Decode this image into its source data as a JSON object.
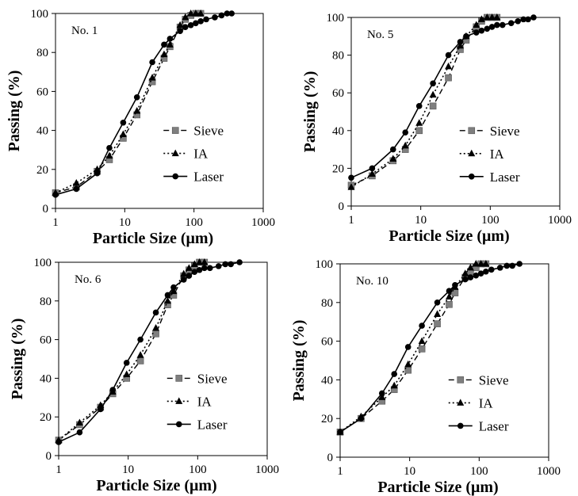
{
  "chart_data": [
    {
      "type": "line",
      "title": "No. 1",
      "xlabel": "Particle Size (μm)",
      "ylabel": "Passing (%)",
      "x_scale": "log",
      "xlim": [
        1,
        1000
      ],
      "ylim": [
        0,
        100
      ],
      "x_ticks": [
        "1",
        "10",
        "100",
        "1000"
      ],
      "y_ticks": [
        "0",
        "20",
        "40",
        "60",
        "80",
        "100"
      ],
      "legend_position": "center-right",
      "series": [
        {
          "name": "Sieve",
          "line": "dashed",
          "marker": "square",
          "x": [
            1,
            2,
            4,
            6,
            9.5,
            15,
            25,
            37,
            45,
            63,
            75,
            90,
            106,
            125
          ],
          "y": [
            8,
            11,
            19,
            25,
            36,
            48,
            65,
            77,
            83,
            93,
            97,
            99,
            100,
            100
          ]
        },
        {
          "name": "IA",
          "line": "dotted",
          "marker": "triangle",
          "x": [
            1,
            2,
            4,
            6,
            9.5,
            15,
            25,
            37,
            45,
            63,
            75,
            90,
            106,
            125
          ],
          "y": [
            8,
            13,
            20,
            27,
            38,
            50,
            67,
            79,
            84,
            94,
            98,
            100,
            100,
            100
          ]
        },
        {
          "name": "Laser",
          "line": "solid",
          "marker": "circle",
          "x": [
            1,
            2,
            4,
            6,
            9.5,
            15,
            25,
            37,
            45,
            63,
            75,
            90,
            106,
            125,
            150,
            200,
            250,
            300,
            350
          ],
          "y": [
            7,
            10,
            18,
            31,
            44,
            57,
            75,
            84,
            87,
            91,
            93,
            94,
            95,
            96,
            97,
            98,
            99,
            100,
            100
          ]
        }
      ]
    },
    {
      "type": "line",
      "title": "No. 5",
      "xlabel": "Particle Size (μm)",
      "ylabel": "Passing (%)",
      "x_scale": "log",
      "xlim": [
        1,
        1000
      ],
      "ylim": [
        0,
        100
      ],
      "x_ticks": [
        "1",
        "10",
        "100",
        "1000"
      ],
      "y_ticks": [
        "0",
        "20",
        "40",
        "60",
        "80",
        "100"
      ],
      "legend_position": "center-right",
      "series": [
        {
          "name": "Sieve",
          "line": "dashed",
          "marker": "square",
          "x": [
            1,
            2,
            4,
            6,
            9.5,
            15,
            25,
            37,
            45,
            63,
            75,
            90,
            106,
            125
          ],
          "y": [
            11,
            16,
            24,
            30,
            40,
            53,
            68,
            83,
            88,
            95,
            98,
            100,
            100,
            100
          ]
        },
        {
          "name": "IA",
          "line": "dotted",
          "marker": "triangle",
          "x": [
            1,
            2,
            4,
            6,
            9.5,
            15,
            25,
            37,
            45,
            63,
            75,
            90,
            106,
            125
          ],
          "y": [
            10,
            17,
            25,
            32,
            44,
            59,
            74,
            85,
            90,
            96,
            99,
            100,
            100,
            100
          ]
        },
        {
          "name": "Laser",
          "line": "solid",
          "marker": "circle",
          "x": [
            1,
            2,
            4,
            6,
            9.5,
            15,
            25,
            37,
            45,
            63,
            75,
            90,
            106,
            125,
            150,
            200,
            250,
            300,
            350,
            420
          ],
          "y": [
            15,
            20,
            30,
            39,
            53,
            65,
            80,
            87,
            90,
            92,
            93,
            94,
            95,
            96,
            96,
            97,
            98,
            99,
            99,
            100
          ]
        }
      ]
    },
    {
      "type": "line",
      "title": "No. 6",
      "xlabel": "Particle Size (μm)",
      "ylabel": "Passing (%)",
      "x_scale": "log",
      "xlim": [
        1,
        1000
      ],
      "ylim": [
        0,
        100
      ],
      "x_ticks": [
        "1",
        "10",
        "100",
        "1000"
      ],
      "y_ticks": [
        "0",
        "20",
        "40",
        "60",
        "80",
        "100"
      ],
      "legend_position": "center-right",
      "series": [
        {
          "name": "Sieve",
          "line": "dashed",
          "marker": "square",
          "x": [
            1,
            2,
            4,
            6,
            9.5,
            15,
            25,
            37,
            45,
            63,
            75,
            90,
            106,
            125
          ],
          "y": [
            8,
            16,
            25,
            32,
            40,
            49,
            63,
            78,
            83,
            93,
            96,
            98,
            100,
            100
          ]
        },
        {
          "name": "IA",
          "line": "dotted",
          "marker": "triangle",
          "x": [
            1,
            2,
            4,
            6,
            9.5,
            15,
            25,
            37,
            45,
            63,
            75,
            90,
            106,
            125
          ],
          "y": [
            8,
            17,
            26,
            33,
            42,
            52,
            66,
            80,
            85,
            94,
            97,
            99,
            100,
            100
          ]
        },
        {
          "name": "Laser",
          "line": "solid",
          "marker": "circle",
          "x": [
            1,
            2,
            4,
            6,
            9.5,
            15,
            25,
            37,
            45,
            63,
            75,
            90,
            106,
            125,
            150,
            200,
            250,
            300,
            400
          ],
          "y": [
            7,
            12,
            24,
            34,
            48,
            60,
            74,
            83,
            87,
            91,
            93,
            95,
            96,
            97,
            97,
            98,
            99,
            99,
            100
          ]
        }
      ]
    },
    {
      "type": "line",
      "title": "No. 10",
      "xlabel": "Particle Size (μm)",
      "ylabel": "Passing (%)",
      "x_scale": "log",
      "xlim": [
        1,
        1000
      ],
      "ylim": [
        0,
        100
      ],
      "x_ticks": [
        "1",
        "10",
        "100",
        "1000"
      ],
      "y_ticks": [
        "0",
        "20",
        "40",
        "60",
        "80",
        "100"
      ],
      "legend_position": "center-right",
      "series": [
        {
          "name": "Sieve",
          "line": "dashed",
          "marker": "square",
          "x": [
            1,
            2,
            4,
            6,
            9.5,
            15,
            25,
            37,
            45,
            63,
            75,
            90,
            106,
            125
          ],
          "y": [
            13,
            20,
            29,
            35,
            45,
            56,
            69,
            79,
            85,
            93,
            96,
            98,
            100,
            100
          ]
        },
        {
          "name": "IA",
          "line": "dotted",
          "marker": "triangle",
          "x": [
            1,
            2,
            4,
            6,
            9.5,
            15,
            25,
            37,
            45,
            63,
            75,
            90,
            106,
            125
          ],
          "y": [
            13,
            21,
            31,
            37,
            48,
            60,
            74,
            83,
            88,
            95,
            98,
            100,
            100,
            100
          ]
        },
        {
          "name": "Laser",
          "line": "solid",
          "marker": "circle",
          "x": [
            1,
            2,
            4,
            6,
            9.5,
            15,
            25,
            37,
            45,
            63,
            75,
            90,
            106,
            125,
            150,
            200,
            250,
            300,
            380
          ],
          "y": [
            13,
            20,
            33,
            43,
            57,
            68,
            80,
            86,
            89,
            92,
            93,
            94,
            95,
            96,
            97,
            98,
            99,
            99,
            100
          ]
        }
      ]
    }
  ]
}
